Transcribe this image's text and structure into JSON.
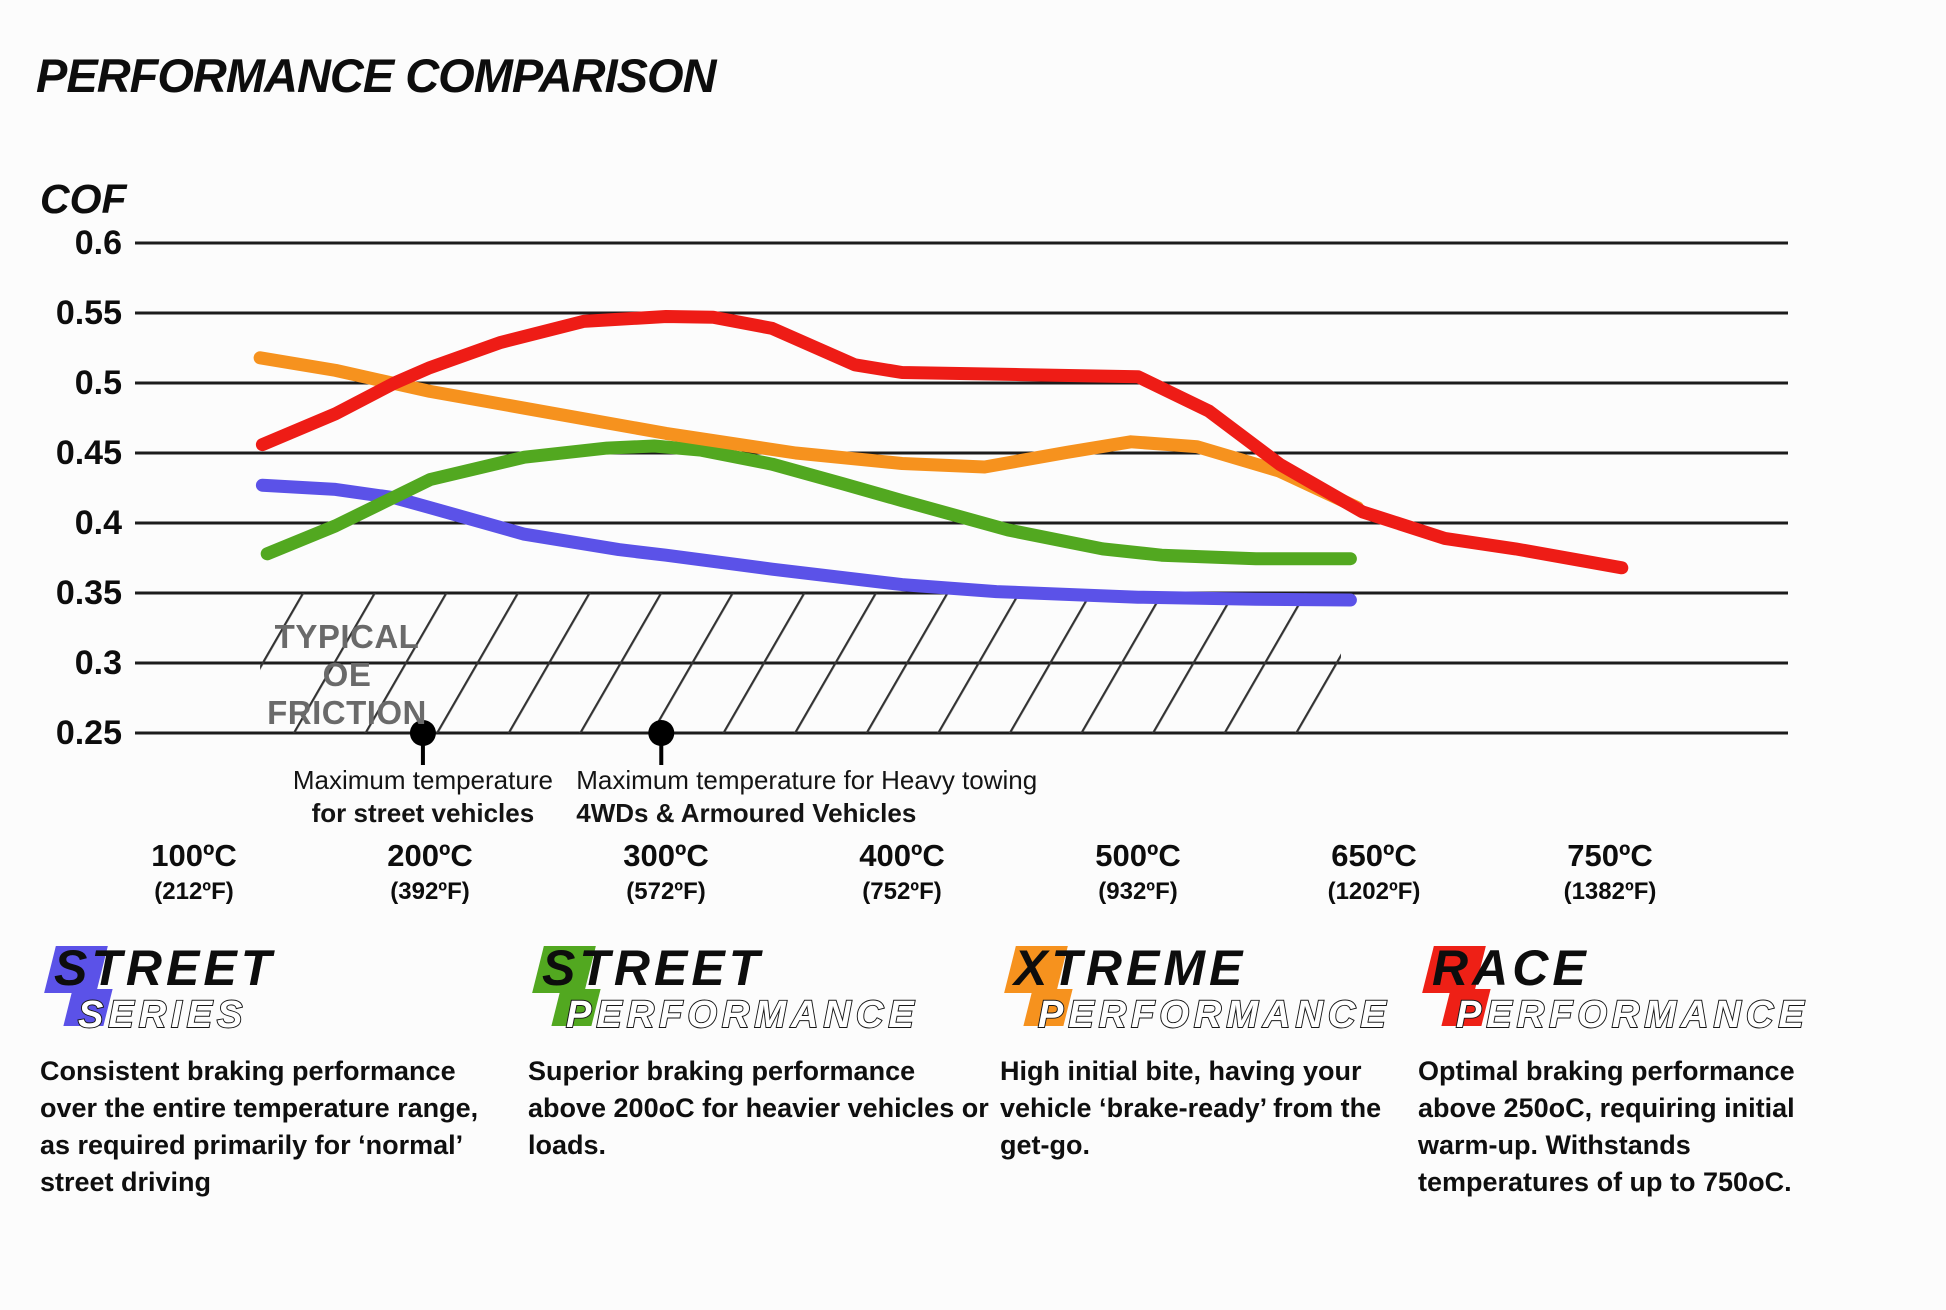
{
  "header": {
    "title": "PERFORMANCE COMPARISON",
    "ylabel": "COF"
  },
  "chart_data": {
    "type": "line",
    "title": "PERFORMANCE COMPARISON",
    "ylabel": "COF",
    "grid": "horizontal-only",
    "ylim": [
      0.25,
      0.6
    ],
    "y_tick_labels": [
      "0.6",
      "0.55",
      "0.5",
      "0.45",
      "0.4",
      "0.35",
      "0.3",
      "0.25"
    ],
    "x_axis_note": "categorical temperature axis, evenly spaced ticks; u=1..7 maps to the ticks below",
    "x_ticks": [
      {
        "c": "100ºC",
        "f": "(212ºF)"
      },
      {
        "c": "200ºC",
        "f": "(392ºF)"
      },
      {
        "c": "300ºC",
        "f": "(572ºF)"
      },
      {
        "c": "400ºC",
        "f": "(752ºF)"
      },
      {
        "c": "500ºC",
        "f": "(932ºF)"
      },
      {
        "c": "650ºC",
        "f": "(1202ºF)"
      },
      {
        "c": "750ºC",
        "f": "(1382ºF)"
      }
    ],
    "series": [
      {
        "name": "Street Series",
        "color": "#5b52e8",
        "points": [
          [
            1.29,
            0.427
          ],
          [
            1.6,
            0.424
          ],
          [
            1.85,
            0.418
          ],
          [
            2.0,
            0.411
          ],
          [
            2.4,
            0.392
          ],
          [
            2.8,
            0.381
          ],
          [
            3.0,
            0.377
          ],
          [
            3.45,
            0.367
          ],
          [
            4.0,
            0.356
          ],
          [
            4.4,
            0.351
          ],
          [
            5.0,
            0.347
          ],
          [
            5.5,
            0.3455
          ],
          [
            5.9,
            0.345
          ]
        ]
      },
      {
        "name": "Street Performance",
        "color": "#52a820",
        "points": [
          [
            1.31,
            0.378
          ],
          [
            1.6,
            0.398
          ],
          [
            2.0,
            0.431
          ],
          [
            2.4,
            0.447
          ],
          [
            2.75,
            0.4535
          ],
          [
            2.95,
            0.455
          ],
          [
            3.15,
            0.452
          ],
          [
            3.45,
            0.442
          ],
          [
            3.75,
            0.428
          ],
          [
            4.0,
            0.416
          ],
          [
            4.45,
            0.395
          ],
          [
            4.85,
            0.3815
          ],
          [
            5.1,
            0.377
          ],
          [
            5.5,
            0.3745
          ],
          [
            5.9,
            0.3745
          ]
        ]
      },
      {
        "name": "Xtreme Performance",
        "color": "#f6921e",
        "points": [
          [
            1.28,
            0.518
          ],
          [
            1.6,
            0.509
          ],
          [
            2.0,
            0.494
          ],
          [
            2.4,
            0.482
          ],
          [
            3.0,
            0.464
          ],
          [
            3.55,
            0.45
          ],
          [
            4.0,
            0.4425
          ],
          [
            4.35,
            0.44
          ],
          [
            4.7,
            0.4505
          ],
          [
            4.97,
            0.458
          ],
          [
            5.25,
            0.4545
          ],
          [
            5.6,
            0.437
          ],
          [
            5.93,
            0.411
          ]
        ]
      },
      {
        "name": "Race Performance",
        "color": "#ee1c16",
        "points": [
          [
            1.29,
            0.456
          ],
          [
            1.6,
            0.478
          ],
          [
            1.85,
            0.5
          ],
          [
            2.0,
            0.511
          ],
          [
            2.3,
            0.529
          ],
          [
            2.65,
            0.544
          ],
          [
            3.0,
            0.5475
          ],
          [
            3.2,
            0.547
          ],
          [
            3.45,
            0.539
          ],
          [
            3.8,
            0.513
          ],
          [
            4.0,
            0.5075
          ],
          [
            4.5,
            0.506
          ],
          [
            5.0,
            0.5045
          ],
          [
            5.3,
            0.48
          ],
          [
            5.6,
            0.442
          ],
          [
            5.95,
            0.408
          ],
          [
            6.3,
            0.389
          ],
          [
            6.6,
            0.3815
          ],
          [
            7.05,
            0.368
          ]
        ]
      }
    ],
    "oe_zone": {
      "label_line1": "TYPICAL OE",
      "label_line2": "FRICTION",
      "y_top": 0.35,
      "y_bottom": 0.25,
      "u_start": 1.28,
      "u_end": 5.86
    },
    "annotations": [
      {
        "u": 1.97,
        "align": "center",
        "text_top": "Maximum temperature",
        "text_bottom": "for street vehicles"
      },
      {
        "u": 2.98,
        "align": "left",
        "text_top": "Maximum temperature for Heavy towing",
        "text_bottom": "4WDs & Armoured Vehicles"
      }
    ]
  },
  "legend": [
    {
      "word": "STREET",
      "sub": "SERIES",
      "color": "#5b52e8",
      "desc": "Consistent braking performance over the entire temperature range, as required primarily for ‘normal’ street driving"
    },
    {
      "word": "STREET",
      "sub": "PERFORMANCE",
      "color": "#52a820",
      "desc": "Superior braking performance above 200oC for heavier vehicles or loads."
    },
    {
      "word": "XTREME",
      "sub": "PERFORMANCE",
      "color": "#f6921e",
      "desc": "High initial bite, having your vehicle ‘brake-ready’ from the get-go."
    },
    {
      "word": "RACE",
      "sub": "PERFORMANCE",
      "color": "#ee2016",
      "desc": "Optimal braking performance above 250oC, requiring initial warm-up. Withstands temperatures of up to 750oC."
    }
  ]
}
